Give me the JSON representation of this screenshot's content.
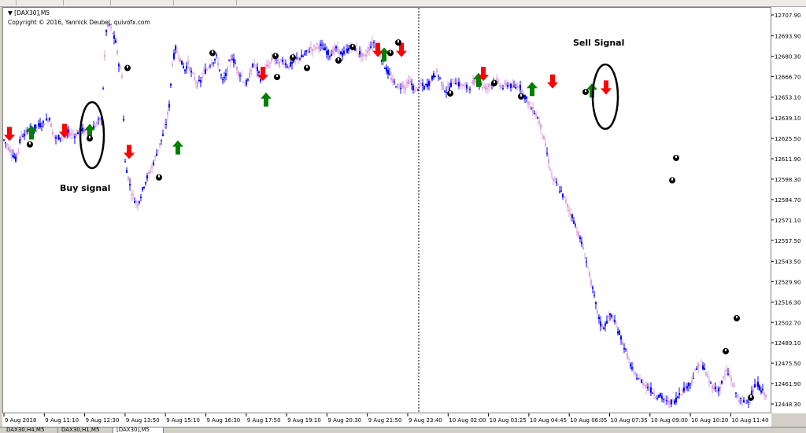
{
  "chart": {
    "symbol_title": "[DAX30],M5",
    "copyright": "Copyright © 2016, Yannick Deubel, quivofx.com",
    "annotation_buy": "Buy signal",
    "annotation_sell": "Sell Signal"
  },
  "tabs": [
    {
      "label": "DAX30,H4,M5"
    },
    {
      "label": "DAX30,H1,M5"
    },
    {
      "label": "[DAX30],M5"
    }
  ],
  "colors": {
    "bull_candle": "#0000ff",
    "bear_candle": "#dda0dd",
    "buy_arrow": "#008000",
    "sell_arrow": "#ff0000",
    "dot_marker": "#000000"
  },
  "chart_data": {
    "type": "candlestick",
    "y_ticks": [
      "12707.90",
      "12693.90",
      "12680.30",
      "12666.70",
      "12653.10",
      "12639.10",
      "12625.50",
      "12611.90",
      "12598.30",
      "12584.70",
      "12571.10",
      "12557.50",
      "12543.50",
      "12529.90",
      "12516.30",
      "12502.70",
      "12489.10",
      "12475.50",
      "12461.90",
      "12448.30"
    ],
    "ylim": [
      12448.3,
      12707.9
    ],
    "x_ticks": [
      "9 Aug 2018",
      "9 Aug 11:10",
      "9 Aug 12:30",
      "9 Aug 13:50",
      "9 Aug 15:10",
      "9 Aug 16:30",
      "9 Aug 17:50",
      "9 Aug 19:10",
      "9 Aug 20:30",
      "9 Aug 21:50",
      "9 Aug 23:40",
      "10 Aug 02:00",
      "10 Aug 03:25",
      "10 Aug 04:45",
      "10 Aug 06:05",
      "10 Aug 07:35",
      "10 Aug 09:00",
      "10 Aug 10:20",
      "10 Aug 11:40"
    ],
    "price_path": [
      [
        0,
        12625
      ],
      [
        8,
        12618
      ],
      [
        15,
        12612
      ],
      [
        22,
        12628
      ],
      [
        28,
        12630
      ],
      [
        35,
        12632
      ],
      [
        42,
        12634
      ],
      [
        50,
        12636
      ],
      [
        58,
        12640
      ],
      [
        62,
        12630
      ],
      [
        66,
        12626
      ],
      [
        75,
        12628
      ],
      [
        82,
        12630
      ],
      [
        90,
        12628
      ],
      [
        98,
        12632
      ],
      [
        106,
        12630
      ],
      [
        112,
        12632
      ],
      [
        118,
        12636
      ],
      [
        124,
        12640
      ],
      [
        128,
        12680
      ],
      [
        130,
        12698
      ],
      [
        134,
        12702
      ],
      [
        138,
        12696
      ],
      [
        142,
        12690
      ],
      [
        146,
        12676
      ],
      [
        150,
        12668
      ],
      [
        154,
        12610
      ],
      [
        158,
        12600
      ],
      [
        162,
        12590
      ],
      [
        166,
        12585
      ],
      [
        170,
        12582
      ],
      [
        174,
        12588
      ],
      [
        178,
        12595
      ],
      [
        182,
        12600
      ],
      [
        186,
        12604
      ],
      [
        190,
        12610
      ],
      [
        194,
        12616
      ],
      [
        198,
        12622
      ],
      [
        202,
        12628
      ],
      [
        206,
        12636
      ],
      [
        210,
        12648
      ],
      [
        214,
        12676
      ],
      [
        218,
        12686
      ],
      [
        222,
        12682
      ],
      [
        226,
        12676
      ],
      [
        230,
        12672
      ],
      [
        234,
        12676
      ],
      [
        238,
        12670
      ],
      [
        242,
        12666
      ],
      [
        246,
        12662
      ],
      [
        250,
        12664
      ],
      [
        254,
        12670
      ],
      [
        258,
        12672
      ],
      [
        262,
        12676
      ],
      [
        266,
        12678
      ],
      [
        270,
        12680
      ],
      [
        274,
        12672
      ],
      [
        278,
        12664
      ],
      [
        282,
        12668
      ],
      [
        286,
        12676
      ],
      [
        290,
        12680
      ],
      [
        294,
        12676
      ],
      [
        298,
        12670
      ],
      [
        302,
        12668
      ],
      [
        306,
        12662
      ],
      [
        310,
        12664
      ],
      [
        314,
        12672
      ],
      [
        318,
        12676
      ],
      [
        322,
        12672
      ],
      [
        326,
        12666
      ],
      [
        330,
        12670
      ],
      [
        334,
        12674
      ],
      [
        338,
        12676
      ],
      [
        342,
        12680
      ],
      [
        346,
        12678
      ],
      [
        350,
        12676
      ],
      [
        354,
        12678
      ],
      [
        358,
        12676
      ],
      [
        362,
        12674
      ],
      [
        366,
        12676
      ],
      [
        370,
        12678
      ],
      [
        374,
        12680
      ],
      [
        378,
        12680
      ],
      [
        382,
        12682
      ],
      [
        386,
        12684
      ],
      [
        390,
        12686
      ],
      [
        394,
        12686
      ],
      [
        398,
        12688
      ],
      [
        402,
        12688
      ],
      [
        406,
        12686
      ],
      [
        410,
        12684
      ],
      [
        414,
        12682
      ],
      [
        418,
        12684
      ],
      [
        422,
        12686
      ],
      [
        426,
        12684
      ],
      [
        430,
        12682
      ],
      [
        434,
        12684
      ],
      [
        438,
        12686
      ],
      [
        442,
        12688
      ],
      [
        446,
        12686
      ],
      [
        450,
        12684
      ],
      [
        454,
        12682
      ],
      [
        458,
        12680
      ],
      [
        462,
        12684
      ],
      [
        466,
        12688
      ],
      [
        470,
        12690
      ],
      [
        474,
        12686
      ],
      [
        478,
        12682
      ],
      [
        482,
        12676
      ],
      [
        486,
        12672
      ],
      [
        490,
        12668
      ],
      [
        494,
        12664
      ],
      [
        498,
        12662
      ],
      [
        502,
        12660
      ],
      [
        506,
        12662
      ],
      [
        510,
        12660
      ],
      [
        514,
        12664
      ],
      [
        518,
        12662
      ],
      [
        522,
        12658
      ],
      [
        526,
        12660
      ],
      [
        530,
        12662
      ],
      [
        534,
        12660
      ],
      [
        538,
        12662
      ],
      [
        542,
        12664
      ],
      [
        546,
        12668
      ],
      [
        550,
        12670
      ],
      [
        554,
        12666
      ],
      [
        558,
        12660
      ],
      [
        562,
        12658
      ],
      [
        566,
        12660
      ],
      [
        570,
        12664
      ],
      [
        574,
        12664
      ],
      [
        578,
        12662
      ],
      [
        582,
        12662
      ],
      [
        586,
        12660
      ],
      [
        590,
        12660
      ],
      [
        594,
        12662
      ],
      [
        598,
        12664
      ],
      [
        602,
        12664
      ],
      [
        606,
        12662
      ],
      [
        610,
        12660
      ],
      [
        614,
        12660
      ],
      [
        618,
        12662
      ],
      [
        622,
        12664
      ],
      [
        626,
        12664
      ],
      [
        630,
        12662
      ],
      [
        634,
        12660
      ],
      [
        638,
        12662
      ],
      [
        642,
        12662
      ],
      [
        646,
        12660
      ],
      [
        650,
        12660
      ],
      [
        654,
        12662
      ],
      [
        658,
        12658
      ],
      [
        662,
        12654
      ],
      [
        666,
        12650
      ],
      [
        670,
        12646
      ],
      [
        674,
        12644
      ],
      [
        678,
        12640
      ],
      [
        682,
        12634
      ],
      [
        686,
        12626
      ],
      [
        690,
        12616
      ],
      [
        694,
        12606
      ],
      [
        698,
        12598
      ],
      [
        702,
        12596
      ],
      [
        706,
        12592
      ],
      [
        710,
        12588
      ],
      [
        714,
        12584
      ],
      [
        718,
        12578
      ],
      [
        722,
        12574
      ],
      [
        726,
        12568
      ],
      [
        730,
        12562
      ],
      [
        734,
        12556
      ],
      [
        738,
        12548
      ],
      [
        742,
        12540
      ],
      [
        746,
        12530
      ],
      [
        750,
        12520
      ],
      [
        754,
        12510
      ],
      [
        758,
        12502
      ],
      [
        762,
        12500
      ],
      [
        766,
        12504
      ],
      [
        770,
        12508
      ],
      [
        774,
        12506
      ],
      [
        778,
        12500
      ],
      [
        782,
        12496
      ],
      [
        786,
        12490
      ],
      [
        790,
        12484
      ],
      [
        794,
        12478
      ],
      [
        798,
        12472
      ],
      [
        802,
        12468
      ],
      [
        806,
        12466
      ],
      [
        810,
        12464
      ],
      [
        814,
        12462
      ],
      [
        818,
        12460
      ],
      [
        822,
        12458
      ],
      [
        826,
        12456
      ],
      [
        830,
        12454
      ],
      [
        834,
        12454
      ],
      [
        838,
        12452
      ],
      [
        842,
        12450
      ],
      [
        846,
        12450
      ],
      [
        850,
        12450
      ],
      [
        854,
        12452
      ],
      [
        858,
        12456
      ],
      [
        862,
        12458
      ],
      [
        866,
        12460
      ],
      [
        870,
        12462
      ],
      [
        874,
        12464
      ],
      [
        878,
        12470
      ],
      [
        882,
        12474
      ],
      [
        886,
        12476
      ],
      [
        890,
        12472
      ],
      [
        894,
        12466
      ],
      [
        898,
        12462
      ],
      [
        902,
        12460
      ],
      [
        906,
        12458
      ],
      [
        910,
        12460
      ],
      [
        914,
        12466
      ],
      [
        918,
        12470
      ],
      [
        922,
        12468
      ],
      [
        926,
        12462
      ],
      [
        930,
        12456
      ],
      [
        934,
        12452
      ],
      [
        938,
        12450
      ],
      [
        942,
        12450
      ],
      [
        946,
        12452
      ],
      [
        950,
        12456
      ],
      [
        954,
        12460
      ],
      [
        958,
        12462
      ],
      [
        962,
        12458
      ],
      [
        966,
        12456
      ],
      [
        970,
        12454
      ]
    ],
    "buy_signals": [
      [
        36,
        12630
      ],
      [
        110,
        12631
      ],
      [
        222,
        12620
      ],
      [
        334,
        12652
      ],
      [
        484,
        12682
      ],
      [
        604,
        12665
      ],
      [
        672,
        12659
      ],
      [
        748,
        12658
      ]
    ],
    "sell_signals": [
      [
        8,
        12629
      ],
      [
        78,
        12631
      ],
      [
        160,
        12617
      ],
      [
        330,
        12669
      ],
      [
        476,
        12685
      ],
      [
        506,
        12685
      ],
      [
        610,
        12669
      ],
      [
        698,
        12664
      ],
      [
        766,
        12660
      ]
    ],
    "dots": [
      [
        34,
        12622
      ],
      [
        110,
        12626
      ],
      [
        158,
        12673
      ],
      [
        198,
        12600
      ],
      [
        266,
        12683
      ],
      [
        346,
        12681
      ],
      [
        368,
        12680
      ],
      [
        348,
        12667
      ],
      [
        386,
        12673
      ],
      [
        426,
        12678
      ],
      [
        444,
        12687
      ],
      [
        492,
        12683
      ],
      [
        502,
        12690
      ],
      [
        568,
        12656
      ],
      [
        624,
        12663
      ],
      [
        658,
        12654
      ],
      [
        740,
        12657
      ],
      [
        855,
        12613
      ],
      [
        850,
        12598
      ],
      [
        918,
        12484
      ],
      [
        932,
        12506
      ],
      [
        950,
        12453
      ]
    ]
  }
}
